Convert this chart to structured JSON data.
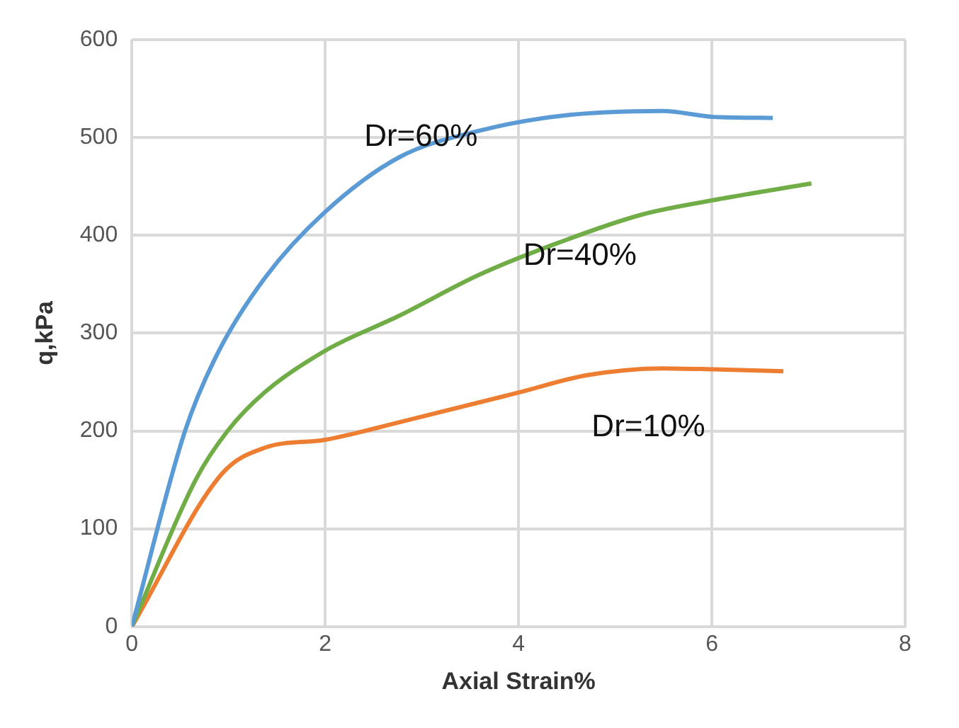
{
  "chart_data": {
    "type": "line",
    "xlabel": "Axial Strain%",
    "ylabel": "q,kPa",
    "xlim": [
      0,
      8
    ],
    "xticks": [
      0,
      2,
      4,
      6,
      8
    ],
    "ylim": [
      0,
      600
    ],
    "yticks": [
      0,
      100,
      200,
      300,
      400,
      500,
      600
    ],
    "grid": true,
    "legend": false,
    "marker": "none",
    "line_style": "solid",
    "series": [
      {
        "name": "Dr=60%",
        "color": "#5b9bd5",
        "x": [
          0,
          0.55,
          0.88,
          1.38,
          2,
          2.77,
          3.6,
          4.43,
          5.49,
          6.02,
          6.63
        ],
        "values": [
          0,
          200,
          278,
          357,
          424,
          480,
          507,
          522,
          527,
          521,
          520
        ]
      },
      {
        "name": "Dr=40%",
        "color": "#70ad47",
        "x": [
          0,
          0.66,
          0.99,
          1.38,
          2,
          2.77,
          3.6,
          4.43,
          5.27,
          6.02,
          7.03
        ],
        "values": [
          0,
          150,
          200,
          240,
          282,
          318,
          360,
          393,
          421,
          436,
          453
        ]
      },
      {
        "name": "Dr=10%",
        "color": "#ed7d31",
        "x": [
          0,
          0.93,
          1.38,
          2,
          2.77,
          3.99,
          4.71,
          5.49,
          6.02,
          6.74
        ],
        "values": [
          0,
          156,
          183,
          191,
          209,
          239,
          257,
          264,
          263,
          261
        ]
      }
    ]
  }
}
